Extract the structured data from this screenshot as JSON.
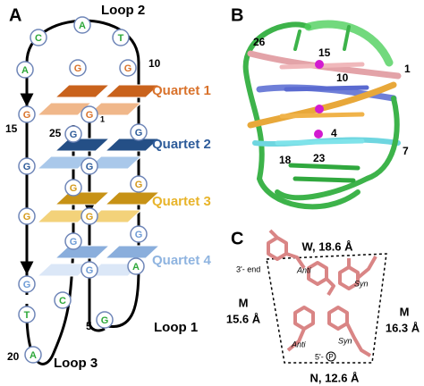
{
  "panel_a": {
    "label": "A",
    "loops": [
      "Loop 2",
      "Loop 1",
      "Loop 3"
    ],
    "quartets": [
      "Quartet 1",
      "Quartet 2",
      "Quartet 3",
      "Quartet 4"
    ],
    "nucleotides": [
      "C",
      "A",
      "T",
      "A",
      "G",
      "G",
      "G",
      "G",
      "G",
      "G",
      "G",
      "G",
      "G",
      "G",
      "G",
      "G",
      "G",
      "G",
      "G",
      "G",
      "T",
      "C",
      "A",
      "A",
      "G"
    ],
    "numbers": [
      "10",
      "15",
      "25",
      "1",
      "5",
      "20"
    ]
  },
  "panel_b": {
    "label": "B",
    "numbers": [
      "26",
      "15",
      "1",
      "10",
      "4",
      "7",
      "18",
      "23"
    ]
  },
  "panel_c": {
    "label": "C",
    "top": "W, 18.6 Å",
    "bottom": "N, 12.6 Å",
    "left": {
      "groove": "M",
      "distance": "15.6 Å"
    },
    "right": {
      "groove": "M",
      "distance": "16.3 Å"
    },
    "three_prime": "3'- end",
    "five_prime": "5'-",
    "phosphate": "P",
    "conformations": [
      "Anti",
      "Syn",
      "Anti",
      "Syn"
    ]
  }
}
